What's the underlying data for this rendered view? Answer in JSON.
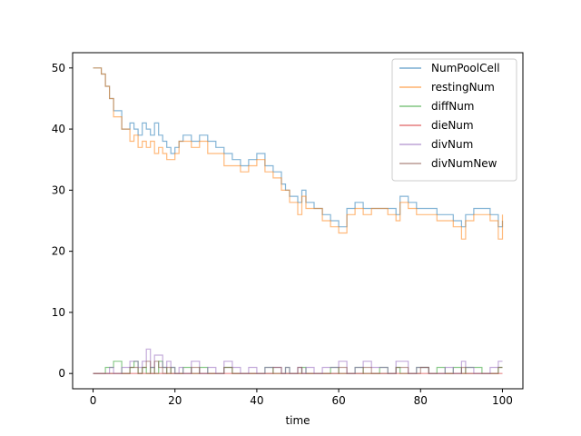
{
  "chart_data": {
    "type": "line",
    "xlabel": "time",
    "ylabel": "",
    "title": "",
    "xlim": [
      -5,
      105
    ],
    "ylim": [
      -2.5,
      52.5
    ],
    "xticks": [
      0,
      20,
      40,
      60,
      80,
      100
    ],
    "yticks": [
      0,
      10,
      20,
      30,
      40,
      50
    ],
    "xtick_labels": [
      "0",
      "20",
      "40",
      "60",
      "80",
      "100"
    ],
    "ytick_labels": [
      "0",
      "10",
      "20",
      "30",
      "40",
      "50"
    ],
    "grid": false,
    "legend_position": "top-right",
    "x": [
      0,
      2,
      3,
      4,
      5,
      7,
      9,
      10,
      11,
      12,
      13,
      14,
      15,
      16,
      17,
      18,
      19,
      20,
      21,
      22,
      24,
      26,
      28,
      30,
      32,
      34,
      36,
      38,
      40,
      42,
      44,
      46,
      47,
      48,
      50,
      51,
      52,
      54,
      56,
      58,
      60,
      62,
      64,
      66,
      68,
      70,
      72,
      74,
      75,
      77,
      79,
      80,
      82,
      84,
      86,
      88,
      90,
      91,
      93,
      95,
      97,
      99,
      100
    ],
    "series": [
      {
        "name": "NumPoolCell",
        "color": "#1f77b4",
        "values": [
          50,
          49,
          47,
          45,
          43,
          40,
          41,
          40,
          39,
          41,
          40,
          39,
          41,
          39,
          38,
          37,
          36,
          37,
          38,
          39,
          38,
          39,
          38,
          37,
          36,
          35,
          34,
          35,
          36,
          34,
          33,
          31,
          30,
          29,
          28,
          30,
          28,
          27,
          26,
          25,
          24,
          27,
          28,
          27,
          27,
          27,
          27,
          26,
          29,
          28,
          27,
          27,
          27,
          26,
          26,
          25,
          24,
          26,
          27,
          27,
          26,
          24,
          25
        ]
      },
      {
        "name": "restingNum",
        "color": "#ff7f0e",
        "values": [
          50,
          49,
          47,
          45,
          42,
          40,
          38,
          39,
          37,
          38,
          37,
          38,
          36,
          37,
          36,
          35,
          35,
          36,
          38,
          38,
          37,
          38,
          36,
          36,
          34,
          34,
          33,
          34,
          35,
          33,
          32,
          30,
          30,
          28,
          26,
          29,
          27,
          27,
          25,
          24,
          23,
          26,
          27,
          26,
          27,
          27,
          26,
          25,
          28,
          27,
          26,
          26,
          26,
          25,
          25,
          24,
          22,
          25,
          26,
          26,
          25,
          22,
          26
        ]
      },
      {
        "name": "diffNum",
        "color": "#2ca02c",
        "values": [
          0,
          0,
          1,
          1,
          2,
          0,
          1,
          2,
          0,
          1,
          0,
          1,
          0,
          2,
          1,
          0,
          1,
          0,
          0,
          1,
          0,
          1,
          0,
          0,
          1,
          0,
          0,
          0,
          0,
          1,
          0,
          0,
          1,
          0,
          0,
          1,
          0,
          0,
          0,
          1,
          0,
          0,
          1,
          0,
          0,
          1,
          0,
          1,
          0,
          0,
          1,
          1,
          0,
          1,
          0,
          1,
          0,
          1,
          1,
          0,
          0,
          1,
          1
        ]
      },
      {
        "name": "dieNum",
        "color": "#d62728",
        "values": [
          0,
          0,
          0,
          0,
          0,
          0,
          0,
          0,
          0,
          0,
          0,
          0,
          0,
          0,
          0,
          0,
          0,
          0,
          0,
          0,
          0,
          0,
          0,
          0,
          0,
          0,
          0,
          0,
          0,
          0,
          0,
          0,
          0,
          0,
          0,
          0,
          0,
          0,
          0,
          0,
          0,
          0,
          0,
          0,
          0,
          0,
          0,
          0,
          0,
          0,
          0,
          0,
          0,
          0,
          0,
          0,
          0,
          0,
          0,
          0,
          0,
          0,
          0
        ]
      },
      {
        "name": "divNum",
        "color": "#9467bd",
        "values": [
          0,
          0,
          0,
          1,
          0,
          1,
          2,
          2,
          1,
          2,
          4,
          1,
          3,
          3,
          1,
          2,
          1,
          0,
          1,
          0,
          2,
          0,
          1,
          0,
          2,
          1,
          0,
          1,
          0,
          1,
          1,
          0,
          1,
          0,
          1,
          0,
          1,
          0,
          1,
          1,
          2,
          0,
          1,
          2,
          1,
          1,
          0,
          2,
          2,
          0,
          1,
          1,
          0,
          0,
          1,
          0,
          2,
          1,
          0,
          0,
          1,
          2,
          2
        ]
      },
      {
        "name": "divNumNew",
        "color": "#8c564b",
        "values": [
          0,
          0,
          0,
          0,
          0,
          0,
          1,
          1,
          0,
          1,
          2,
          0,
          2,
          1,
          0,
          1,
          0,
          0,
          0,
          0,
          1,
          0,
          0,
          0,
          1,
          0,
          0,
          0,
          0,
          0,
          1,
          0,
          0,
          0,
          1,
          0,
          0,
          0,
          0,
          0,
          1,
          0,
          0,
          1,
          0,
          0,
          0,
          1,
          1,
          0,
          0,
          1,
          0,
          0,
          0,
          0,
          1,
          0,
          0,
          0,
          0,
          1,
          1
        ]
      }
    ]
  }
}
